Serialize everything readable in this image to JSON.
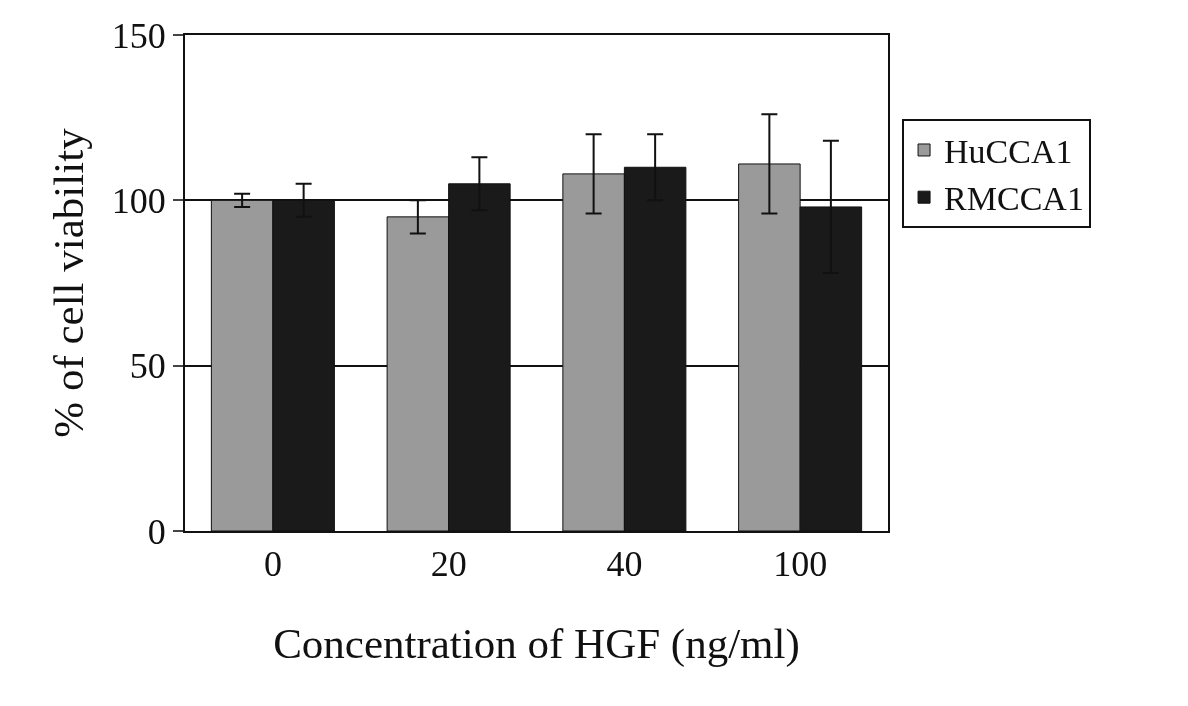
{
  "chart_data": {
    "type": "bar",
    "xlabel": "Concentration of HGF (ng/ml)",
    "ylabel": "% of cell viability",
    "categories": [
      "0",
      "20",
      "40",
      "100"
    ],
    "series": [
      {
        "name": "HuCCA1",
        "color": "#9a9a9a",
        "values": [
          100,
          95,
          108,
          111
        ],
        "errors": [
          2,
          5,
          12,
          15
        ]
      },
      {
        "name": "RMCCA1",
        "color": "#1a1a1a",
        "values": [
          100,
          105,
          110,
          98
        ],
        "errors": [
          5,
          8,
          10,
          20
        ]
      }
    ],
    "ylim": [
      0,
      150
    ],
    "yticks": [
      0,
      50,
      100,
      150
    ],
    "grid": "y",
    "legend": "right"
  }
}
